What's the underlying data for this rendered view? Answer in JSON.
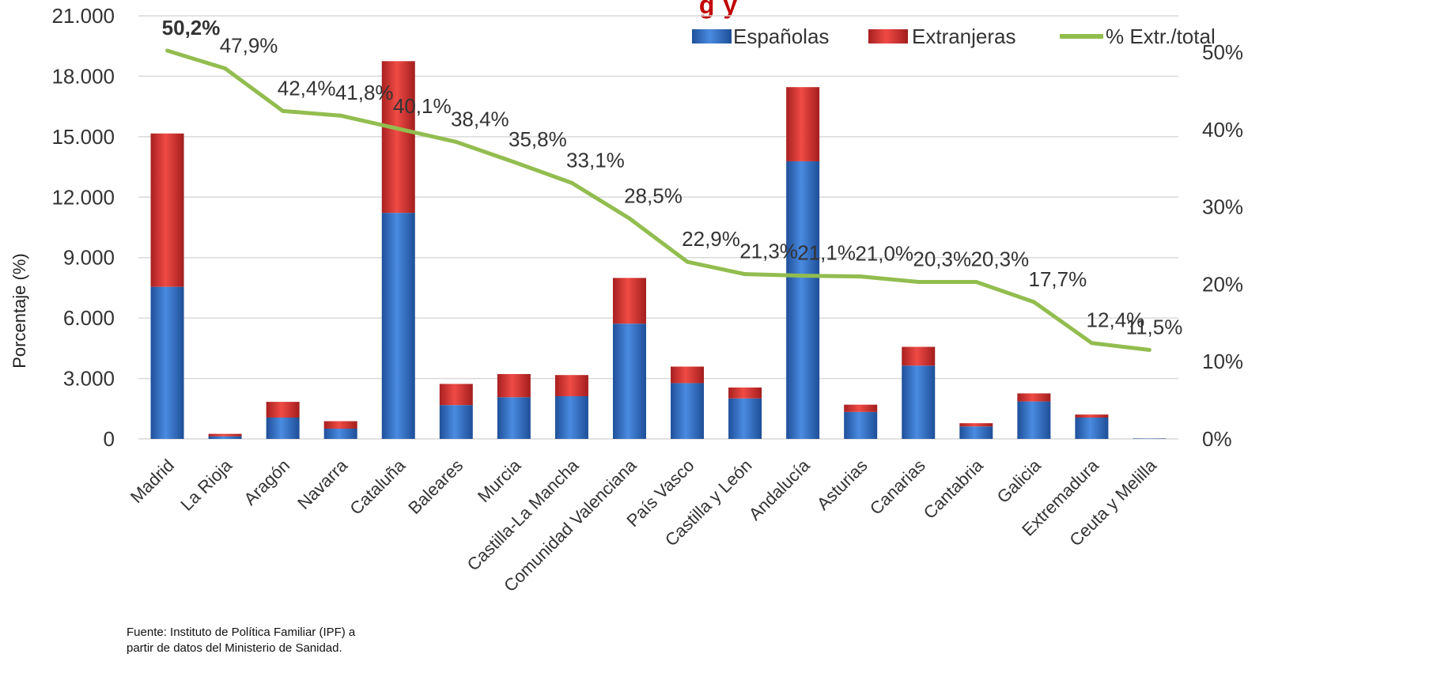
{
  "chart_data": {
    "type": "bar",
    "title_fragment": "g              y",
    "ylabel": "Porcentaje (%)",
    "source_note": "Fuente: Instituto de Política Familiar (IPF) a partir de datos del Ministerio de Sanidad.",
    "source_lines": [
      "Fuente: Instituto de Política Familiar (IPF) a",
      "partir de datos del Ministerio de Sanidad."
    ],
    "categories": [
      "Madrid",
      "La Rioja",
      "Aragón",
      "Navarra",
      "Cataluña",
      "Baleares",
      "Murcia",
      "Castilla-La Mancha",
      "Comunidad Valenciana",
      "País Vasco",
      "Castilla y León",
      "Andalucía",
      "Asturias",
      "Canarias",
      "Cantabria",
      "Galicia",
      "Extremadura",
      "Ceuta y Melilla"
    ],
    "series": [
      {
        "name": "Españolas",
        "type": "bar",
        "axis": "left",
        "color": "#2f6fc4",
        "values": [
          7550,
          130,
          1060,
          510,
          11220,
          1680,
          2070,
          2120,
          5720,
          2770,
          2010,
          13780,
          1340,
          3640,
          620,
          1860,
          1060,
          20
        ]
      },
      {
        "name": "Extranjeras",
        "type": "bar",
        "axis": "left",
        "color": "#d93430",
        "values": [
          7610,
          120,
          780,
          370,
          7530,
          1050,
          1150,
          1050,
          2270,
          820,
          540,
          3680,
          360,
          930,
          160,
          400,
          150,
          3
        ]
      },
      {
        "name": "% Extr./total",
        "type": "line",
        "axis": "right",
        "color": "#92bd4f",
        "values": [
          50.2,
          47.9,
          42.4,
          41.8,
          40.1,
          38.4,
          35.8,
          33.1,
          28.5,
          22.9,
          21.3,
          21.1,
          21.0,
          20.3,
          20.3,
          17.7,
          12.4,
          11.5
        ],
        "labels": [
          "50,2%",
          "47,9%",
          "42,4%",
          "41,8%",
          "40,1%",
          "38,4%",
          "35,8%",
          "33,1%",
          "28,5%",
          "22,9%",
          "21,3%",
          "21,1%",
          "21,0%",
          "20,3%",
          "20,3%",
          "17,7%",
          "12,4%",
          "11,5%"
        ]
      }
    ],
    "yleft": {
      "min": 0,
      "max": 21000,
      "ticks": [
        "0",
        "3.000",
        "6.000",
        "9.000",
        "12.000",
        "15.000",
        "18.000",
        "21.000"
      ]
    },
    "yright": {
      "min": 0,
      "max": 55,
      "ticks": [
        "0%",
        "10%",
        "20%",
        "30%",
        "40%",
        "50%"
      ]
    },
    "grid": true,
    "legend_position": "top-right"
  }
}
